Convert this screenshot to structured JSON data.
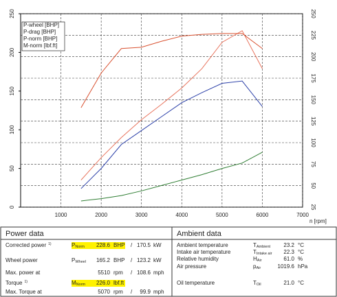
{
  "chart_data": {
    "type": "line",
    "x": [
      1500,
      2000,
      2500,
      3000,
      3500,
      4000,
      4500,
      5000,
      5500,
      6000
    ],
    "xlim": [
      0,
      7000
    ],
    "xticks": [
      1000,
      2000,
      3000,
      4000,
      5000,
      6000,
      7000
    ],
    "xlabel": "n [rpm]",
    "ylim": [
      0,
      250
    ],
    "yticks": [
      0,
      50,
      100,
      150,
      200,
      250
    ],
    "y2lim": [
      25,
      250
    ],
    "y2ticks": [
      25,
      50,
      75,
      100,
      125,
      150,
      175,
      200,
      225,
      250
    ],
    "grid": true,
    "legend": "upper left",
    "series": [
      {
        "name": "P-wheel [BHP]",
        "color": "#2a3fa8",
        "values": [
          24,
          50,
          81,
          99,
          117,
          135,
          148,
          160,
          163,
          130
        ]
      },
      {
        "name": "P-drag [BHP]",
        "color": "#2e7d32",
        "values": [
          8,
          11,
          15,
          21,
          28,
          35,
          42,
          50,
          57,
          71
        ]
      },
      {
        "name": "P-norm [BHP]",
        "color": "#a33a2a",
        "line_color": "#e8735c",
        "values": [
          35,
          64,
          90,
          113,
          133,
          154,
          179,
          213,
          228,
          179
        ]
      },
      {
        "name": "M-norm [lbf.ft]",
        "color": "#d9502f",
        "axis": "y2",
        "values": [
          140.7,
          181,
          209.5,
          211,
          218,
          224,
          226,
          227,
          227,
          209.5
        ]
      }
    ]
  },
  "power_data": {
    "title": "Power data",
    "rows": [
      {
        "label": "Corrected power",
        "note": "1)",
        "color": "#c0392b",
        "highlight": true,
        "symbol": "P",
        "sub": "Norm",
        "value": "228.6",
        "unit": "BHP",
        "sep": "/",
        "alt_value": "170.5",
        "alt_unit": "kW"
      },
      {
        "label": "Wheel power",
        "color": "#1f3a93",
        "symbol": "P",
        "sub": "Wheel",
        "value": "165.2",
        "unit": "BHP",
        "sep": "/",
        "alt_value": "123.2",
        "alt_unit": "kW"
      },
      {
        "label": "Max. power at",
        "value": "5510",
        "unit": "rpm",
        "sep": "/",
        "alt_value": "108.6",
        "alt_unit": "mph"
      },
      {
        "label": "Torque",
        "note": "1)",
        "color": "#c0392b",
        "highlight": true,
        "symbol": "M",
        "sub": "Norm",
        "value": "226.0",
        "unit": "lbf.ft"
      },
      {
        "label": "Max. Torque at",
        "value": "5070",
        "unit": "rpm",
        "sep": "/",
        "alt_value": "99.9",
        "alt_unit": "mph"
      }
    ]
  },
  "ambient_data": {
    "title": "Ambient data",
    "rows": [
      {
        "label": "Ambient temperature",
        "symbol": "T",
        "sub": "Ambient",
        "value": "23.2",
        "unit": "°C"
      },
      {
        "label": "Intake air temperature",
        "symbol": "T",
        "sub": "Intake air",
        "value": "22.3",
        "unit": "°C"
      },
      {
        "label": "Relative humidity",
        "symbol": "H",
        "sub": "Air",
        "value": "61.0",
        "unit": "%"
      },
      {
        "label": "Air pressure",
        "symbol": "p",
        "sub": "Air",
        "value": "1019.6",
        "unit": "hPa"
      },
      {
        "label": "Oil temperature",
        "symbol": "T",
        "sub": "Oil",
        "value": "21.0",
        "unit": "°C"
      }
    ]
  }
}
